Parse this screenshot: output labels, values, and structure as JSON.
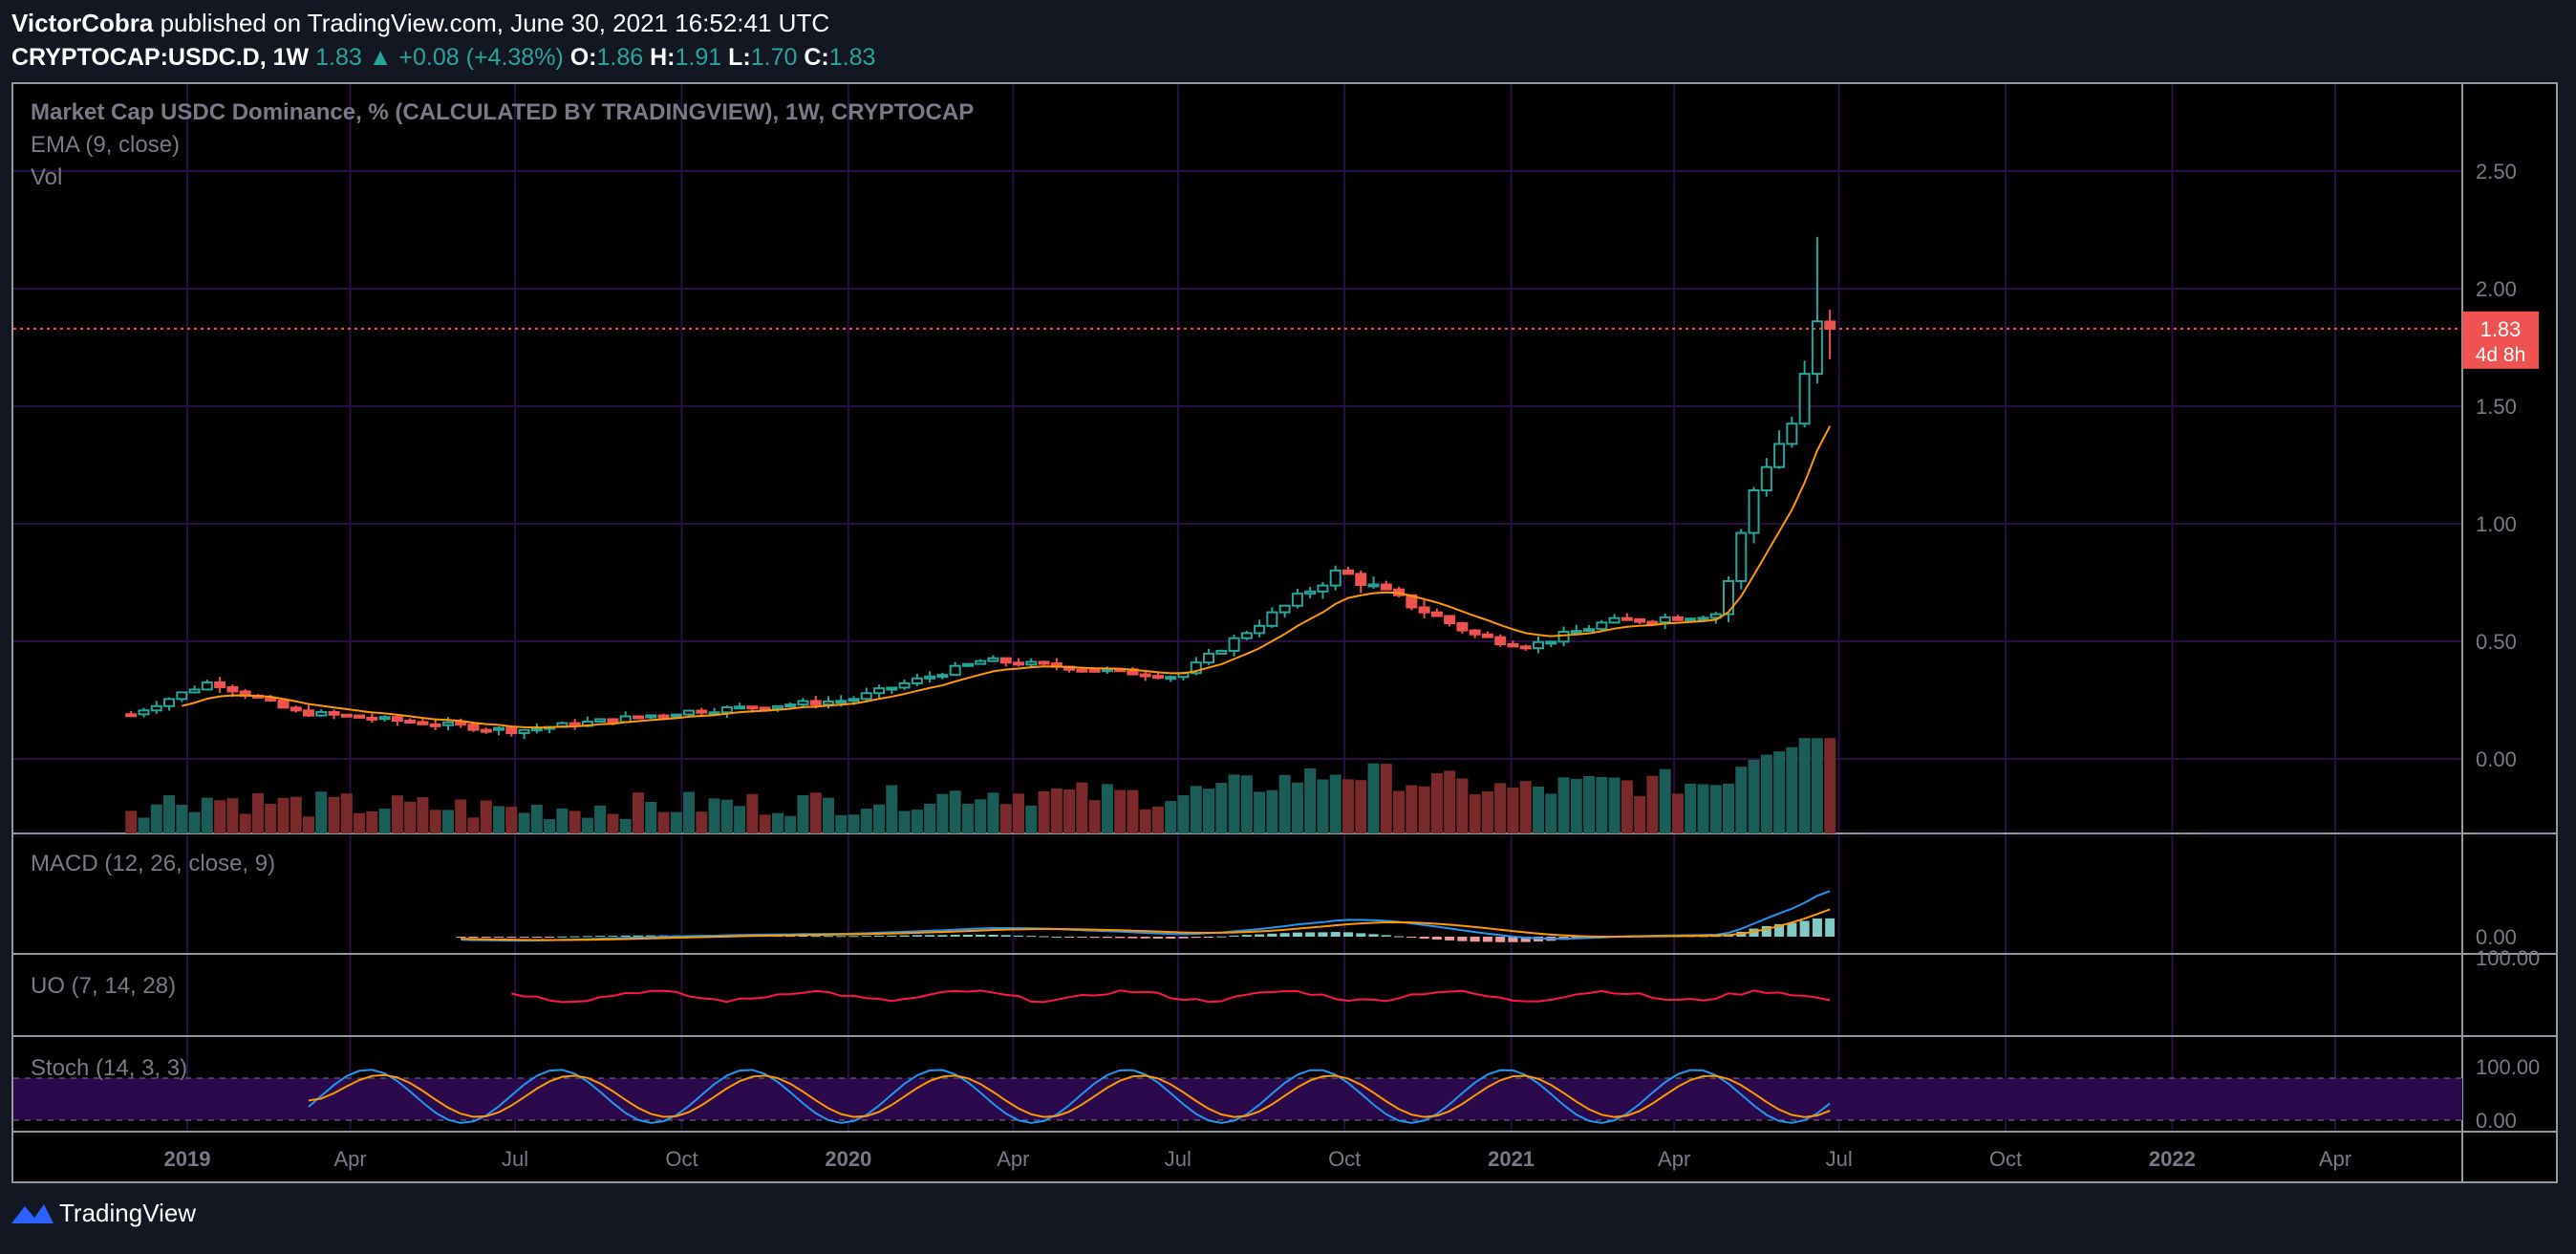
{
  "header": {
    "author": "VictorCobra",
    "published_text": " published on TradingView.com, June 30, 2021 16:52:41 UTC",
    "symbol": "CRYPTOCAP:USDC.D, 1W",
    "last": "1.83",
    "change": "+0.08 (+4.38%)",
    "o_label": "O:",
    "o": "1.86",
    "h_label": "H:",
    "h": "1.91",
    "l_label": "L:",
    "l": "1.70",
    "c_label": "C:",
    "c": "1.83"
  },
  "panes": {
    "main_title": "Market Cap USDC Dominance, % (CALCULATED BY TRADINGVIEW), 1W, CRYPTOCAP",
    "ema_label": "EMA (9, close)",
    "vol_label": "Vol",
    "macd_label": "MACD (12, 26, close, 9)",
    "uo_label": "UO (7, 14, 28)",
    "stoch_label": "Stoch (14, 3, 3)"
  },
  "price_tag": {
    "value": "1.83",
    "countdown": "4d 8h"
  },
  "footer": {
    "brand": "TradingView"
  },
  "colors": {
    "up": "#26a69a",
    "down": "#ef5350",
    "ema": "#ff9800",
    "macd": "#2196f3",
    "signal": "#ff9800",
    "uo": "#ff1744",
    "stoch_band": "#2a0a4a",
    "grid": "#2a0f45"
  },
  "chart_data": {
    "type": "candlestick",
    "title": "Market Cap USDC Dominance, % (CALCULATED BY TRADINGVIEW), 1W, CRYPTOCAP",
    "x_ticks": [
      "2019",
      "Apr",
      "Jul",
      "Oct",
      "2020",
      "Apr",
      "Jul",
      "Oct",
      "2021",
      "Apr",
      "Jul",
      "Oct",
      "2022",
      "Apr"
    ],
    "y_ticks": [
      "0.00",
      "0.50",
      "1.00",
      "1.50",
      "2.00",
      "2.50"
    ],
    "ylim": [
      -0.3,
      2.85
    ],
    "anchor_points": [
      {
        "date": "2018-12-01",
        "close": 0.19
      },
      {
        "date": "2019-01-14",
        "close": 0.33
      },
      {
        "date": "2019-03-01",
        "close": 0.2
      },
      {
        "date": "2019-07-01",
        "close": 0.12
      },
      {
        "date": "2019-10-01",
        "close": 0.2
      },
      {
        "date": "2020-01-01",
        "close": 0.25
      },
      {
        "date": "2020-03-16",
        "close": 0.42
      },
      {
        "date": "2020-07-01",
        "close": 0.35
      },
      {
        "date": "2020-09-28",
        "close": 0.8
      },
      {
        "date": "2020-12-14",
        "close": 0.52
      },
      {
        "date": "2021-01-11",
        "close": 0.48
      },
      {
        "date": "2021-02-22",
        "close": 0.58
      },
      {
        "date": "2021-04-26",
        "close": 0.62
      },
      {
        "date": "2021-05-17",
        "close": 1.2
      },
      {
        "date": "2021-06-07",
        "close": 1.45
      },
      {
        "date": "2021-06-21",
        "close": 1.9
      },
      {
        "date": "2021-06-28",
        "close": 1.83
      }
    ],
    "ema_period": 9,
    "last_close": 1.83,
    "macd": {
      "y_ticks": [
        "0.00"
      ]
    },
    "uo": {
      "y_ticks": [
        "100.00"
      ]
    },
    "stoch": {
      "y_ticks": [
        "100.00",
        "0.00"
      ]
    },
    "grid": true
  }
}
